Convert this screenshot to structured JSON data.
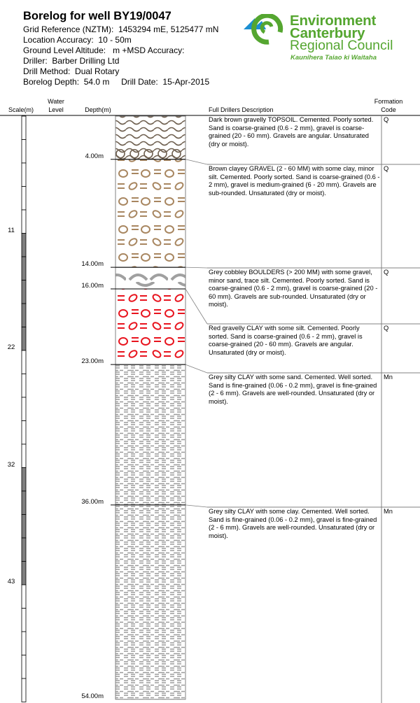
{
  "header": {
    "title": "Borelog for well BY19/0047",
    "grid_reference": "Grid Reference (NZTM):  1453294 mE, 5125477 mN",
    "location_accuracy": "Location Accuracy:  10 - 50m",
    "ground_level": "Ground Level Altitude:   m +MSD Accuracy:",
    "driller": "Driller:  Barber Drilling Ltd",
    "drill_method": "Drill Method:  Dual Rotary",
    "depth_date": "Borelog Depth:  54.0 m     Drill Date:  15-Apr-2015"
  },
  "logo": {
    "line1": "Environment",
    "line2": "Canterbury",
    "line3": "Regional Council",
    "tagline": "Kaunihera Taiao ki Waitaha",
    "green": "#55a630",
    "blue": "#1b8fd2"
  },
  "columns": {
    "scale": "Scale(m)",
    "water_level_1": "Water",
    "water_level_2": "Level",
    "depth": "Depth(m)",
    "description": "Full Drillers Description",
    "formation_1": "Formation",
    "formation_2": "Code"
  },
  "scale_labels": [
    "11",
    "22",
    "32",
    "43"
  ],
  "scale_colors": {
    "dark": "#808080",
    "light": "#ffffff"
  },
  "depth_labels": [
    "4.00m",
    "14.00m",
    "16.00m",
    "23.00m",
    "36.00m",
    "54.00m"
  ],
  "layers": [
    {
      "from": 0,
      "to": 4,
      "pattern": "topsoil",
      "color": "#7a6a58",
      "code": "Q",
      "description": "Dark brown gravelly TOPSOIL. Cemented. Poorly sorted. Sand is coarse-grained (0.6 - 2 mm), gravel is coarse-grained (20 - 60 mm). Gravels are angular. Unsaturated (dry or moist)."
    },
    {
      "from": 4,
      "to": 14,
      "pattern": "gravel",
      "color": "#a88660",
      "code": "Q",
      "description": "Brown clayey GRAVEL (2 - 60 MM) with some clay, minor silt. Cemented. Poorly sorted. Sand is coarse-grained (0.6 - 2 mm), gravel is medium-grained (6 - 20 mm). Gravels are sub-rounded. Unsaturated (dry or moist)."
    },
    {
      "from": 14,
      "to": 16,
      "pattern": "boulders",
      "color": "#a0a0a0",
      "code": "Q",
      "description": "Grey cobbley BOULDERS (> 200 MM) with some gravel, minor sand, trace silt. Cemented. Poorly sorted. Sand is coarse-grained (0.6 - 2 mm), gravel is coarse-grained (20 - 60 mm). Gravels are sub-rounded. Unsaturated (dry or moist)."
    },
    {
      "from": 16,
      "to": 23,
      "pattern": "gravel",
      "color": "#e8141e",
      "code": "Q",
      "description": "Red gravelly CLAY with some silt. Cemented. Poorly sorted. Sand is coarse-grained (0.6 - 2 mm), gravel is coarse-grained (20 - 60 mm). Gravels are angular. Unsaturated (dry or moist)."
    },
    {
      "from": 23,
      "to": 36,
      "pattern": "clay",
      "color": "#9a9a9a",
      "code": "Mn",
      "description": "Grey silty CLAY with some sand. Cemented. Well sorted. Sand is fine-grained (0.06 - 0.2 mm), gravel is fine-grained (2 - 6 mm). Gravels are well-rounded. Unsaturated (dry or moist)."
    },
    {
      "from": 36,
      "to": 54,
      "pattern": "clay",
      "color": "#9a9a9a",
      "code": "Mn",
      "description": "Grey silty CLAY with some clay. Cemented. Well sorted. Sand is fine-grained (0.06 - 0.2 mm), gravel is fine-grained (2 - 6 mm). Gravels are well-rounded. Unsaturated (dry or moist)."
    }
  ]
}
